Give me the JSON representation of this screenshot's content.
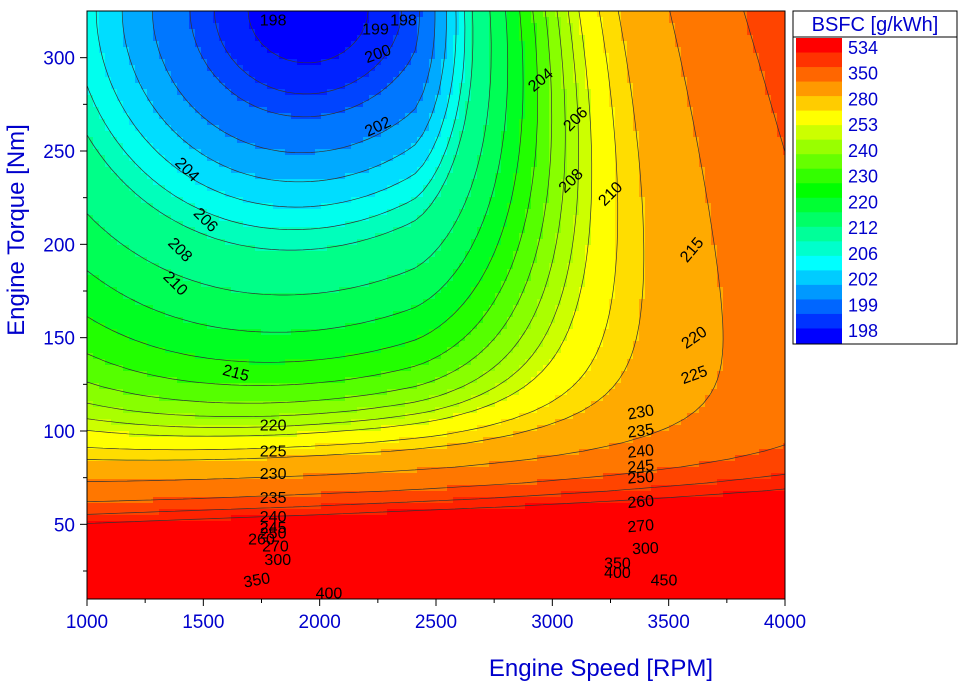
{
  "chart_data": {
    "type": "contour",
    "title": "",
    "xlabel": "Engine Speed [RPM]",
    "ylabel": "Engine Torque [Nm]",
    "xlim": [
      1000,
      4000
    ],
    "ylim": [
      10,
      325
    ],
    "x_ticks": [
      "1000",
      "1500",
      "2000",
      "2500",
      "3000",
      "3500",
      "4000"
    ],
    "y_ticks": [
      "50",
      "100",
      "150",
      "200",
      "250",
      "300"
    ],
    "colorbar": {
      "title": "BSFC [g/kWh]",
      "labels": [
        "534",
        "350",
        "280",
        "253",
        "240",
        "230",
        "220",
        "212",
        "206",
        "202",
        "199",
        "198"
      ],
      "colors": [
        "#ff0000",
        "#ff3300",
        "#ff6600",
        "#ff9900",
        "#ffcc00",
        "#ffff00",
        "#ccff00",
        "#99ff00",
        "#66ff00",
        "#33ff00",
        "#00ff00",
        "#00ff33",
        "#00ff66",
        "#00ff99",
        "#00ffcc",
        "#00ffff",
        "#00ccff",
        "#0099ff",
        "#0066ff",
        "#0033ff",
        "#0000ff"
      ]
    },
    "contour_levels": [
      198,
      199,
      200,
      202,
      204,
      206,
      208,
      210,
      215,
      220,
      225,
      230,
      235,
      240,
      245,
      250,
      260,
      270,
      300,
      350,
      400,
      450
    ],
    "contour_labels": [
      {
        "text": "198",
        "x": 1800,
        "y": 320,
        "angle": 0
      },
      {
        "text": "199",
        "x": 2240,
        "y": 315,
        "angle": 0
      },
      {
        "text": "198",
        "x": 2360,
        "y": 320,
        "angle": 0
      },
      {
        "text": "200",
        "x": 2250,
        "y": 302,
        "angle": -20
      },
      {
        "text": "202",
        "x": 2250,
        "y": 263,
        "angle": -25
      },
      {
        "text": "204",
        "x": 2950,
        "y": 288,
        "angle": -40
      },
      {
        "text": "206",
        "x": 3100,
        "y": 267,
        "angle": -45
      },
      {
        "text": "204",
        "x": 1430,
        "y": 240,
        "angle": 45
      },
      {
        "text": "206",
        "x": 1510,
        "y": 213,
        "angle": 45
      },
      {
        "text": "208",
        "x": 3080,
        "y": 234,
        "angle": -45
      },
      {
        "text": "210",
        "x": 3250,
        "y": 227,
        "angle": -45
      },
      {
        "text": "208",
        "x": 1400,
        "y": 197,
        "angle": 45
      },
      {
        "text": "210",
        "x": 1380,
        "y": 179,
        "angle": 45
      },
      {
        "text": "215",
        "x": 3600,
        "y": 197,
        "angle": -50
      },
      {
        "text": "220",
        "x": 3610,
        "y": 150,
        "angle": -35
      },
      {
        "text": "215",
        "x": 1640,
        "y": 131,
        "angle": 15
      },
      {
        "text": "225",
        "x": 3610,
        "y": 130,
        "angle": -20
      },
      {
        "text": "230",
        "x": 3380,
        "y": 110,
        "angle": -10
      },
      {
        "text": "220",
        "x": 1800,
        "y": 103,
        "angle": 0
      },
      {
        "text": "235",
        "x": 3380,
        "y": 100,
        "angle": -8
      },
      {
        "text": "225",
        "x": 1800,
        "y": 89,
        "angle": 0
      },
      {
        "text": "240",
        "x": 3380,
        "y": 89,
        "angle": -6
      },
      {
        "text": "245",
        "x": 3380,
        "y": 81,
        "angle": -5
      },
      {
        "text": "250",
        "x": 3380,
        "y": 75,
        "angle": -4
      },
      {
        "text": "230",
        "x": 1800,
        "y": 77,
        "angle": 0
      },
      {
        "text": "260",
        "x": 3380,
        "y": 62,
        "angle": -5
      },
      {
        "text": "235",
        "x": 1800,
        "y": 64,
        "angle": 0
      },
      {
        "text": "240",
        "x": 1800,
        "y": 54,
        "angle": 0
      },
      {
        "text": "270",
        "x": 3380,
        "y": 49,
        "angle": -5
      },
      {
        "text": "245",
        "x": 1800,
        "y": 48,
        "angle": 0
      },
      {
        "text": "250",
        "x": 1800,
        "y": 45,
        "angle": 0
      },
      {
        "text": "260",
        "x": 1750,
        "y": 42,
        "angle": 0
      },
      {
        "text": "270",
        "x": 1810,
        "y": 38,
        "angle": 0
      },
      {
        "text": "300",
        "x": 3400,
        "y": 37,
        "angle": -3
      },
      {
        "text": "300",
        "x": 1820,
        "y": 31,
        "angle": 0
      },
      {
        "text": "350",
        "x": 3280,
        "y": 29,
        "angle": 0
      },
      {
        "text": "400",
        "x": 3280,
        "y": 24,
        "angle": 0
      },
      {
        "text": "450",
        "x": 3480,
        "y": 20,
        "angle": 0
      },
      {
        "text": "350",
        "x": 1730,
        "y": 20,
        "angle": -10
      },
      {
        "text": "400",
        "x": 2040,
        "y": 13,
        "angle": 0
      }
    ]
  }
}
